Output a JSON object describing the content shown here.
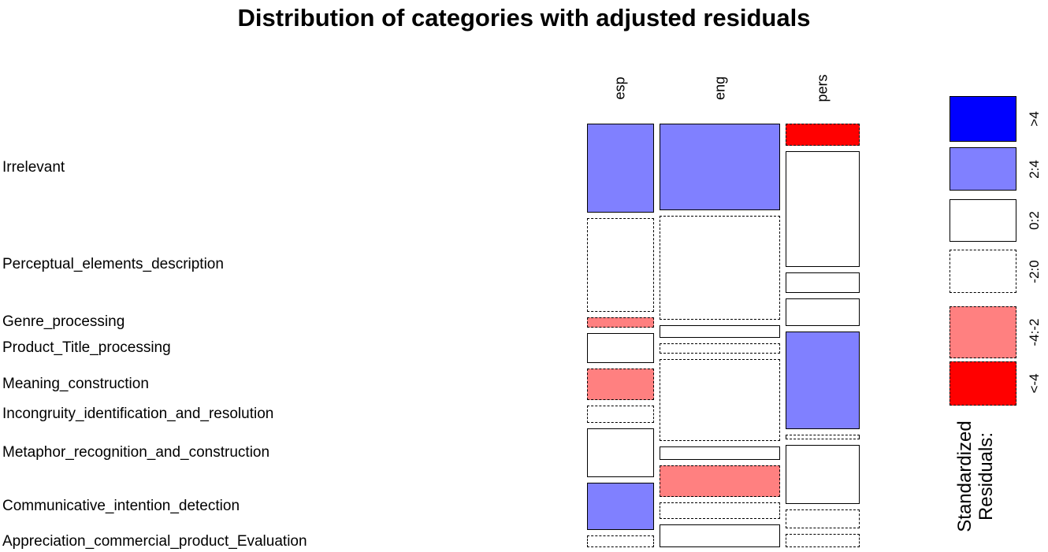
{
  "title": "Distribution of categories with adjusted residuals",
  "legend": {
    "title_lines": [
      "Standardized",
      "Residuals:"
    ],
    "bins": [
      {
        "label": ">4",
        "fill": "#0000FF",
        "border": "solid"
      },
      {
        "label": "2:4",
        "fill": "#8080FF",
        "border": "solid"
      },
      {
        "label": "0:2",
        "fill": "#FFFFFF",
        "border": "solid"
      },
      {
        "label": "-2:0",
        "fill": "#FFFFFF",
        "border": "dashed"
      },
      {
        "label": "-4:-2",
        "fill": "#FF8080",
        "border": "dashed"
      },
      {
        "label": "<-4",
        "fill": "#FF0000",
        "border": "dashed"
      }
    ]
  },
  "chart_data": {
    "type": "mosaic",
    "title": "Distribution of categories with adjusted residuals",
    "legend_position": "right",
    "columns": [
      "esp",
      "eng",
      "pers"
    ],
    "column_shares": [
      0.256,
      0.461,
      0.283
    ],
    "rows": [
      "Irrelevant",
      "Perceptual_elements_description",
      "Genre_processing",
      "Product_Title_processing",
      "Meaning_construction",
      "Incongruity_identification_and_resolution",
      "Metaphor_recognition_and_construction",
      "Communicative_intention_detection",
      "Appreciation_commercial_product_Evaluation"
    ],
    "residual_bins": [
      ">4",
      "2:4",
      "0:2",
      "-2:0",
      "-4:-2",
      "<-4"
    ],
    "cells": [
      {
        "column": "esp",
        "cells": [
          {
            "row": "Irrelevant",
            "share": 0.234,
            "residual_bin": "2:4"
          },
          {
            "row": "Perceptual_elements_description",
            "share": 0.247,
            "residual_bin": "-2:0"
          },
          {
            "row": "Genre_processing",
            "share": 0.027,
            "residual_bin": "-4:-2"
          },
          {
            "row": "Product_Title_processing",
            "share": 0.079,
            "residual_bin": "0:2"
          },
          {
            "row": "Meaning_construction",
            "share": 0.083,
            "residual_bin": "-4:-2"
          },
          {
            "row": "Incongruity_identification_and_resolution",
            "share": 0.046,
            "residual_bin": "-2:0"
          },
          {
            "row": "Metaphor_recognition_and_construction",
            "share": 0.129,
            "residual_bin": "0:2"
          },
          {
            "row": "Communicative_intention_detection",
            "share": 0.124,
            "residual_bin": "2:4"
          },
          {
            "row": "Appreciation_commercial_product_Evaluation",
            "share": 0.031,
            "residual_bin": "-2:0"
          }
        ]
      },
      {
        "column": "eng",
        "cells": [
          {
            "row": "Irrelevant",
            "share": 0.228,
            "residual_bin": "2:4"
          },
          {
            "row": "Perceptual_elements_description",
            "share": 0.274,
            "residual_bin": "-2:0"
          },
          {
            "row": "Genre_processing",
            "share": 0.033,
            "residual_bin": "0:2"
          },
          {
            "row": "Product_Title_processing",
            "share": 0.027,
            "residual_bin": "-2:0"
          },
          {
            "row": "Meaning_construction",
            "share": 0.216,
            "residual_bin": "-2:0"
          },
          {
            "row": "Incongruity_identification_and_resolution",
            "share": 0.035,
            "residual_bin": "0:2"
          },
          {
            "row": "Metaphor_recognition_and_construction",
            "share": 0.083,
            "residual_bin": "-4:-2"
          },
          {
            "row": "Communicative_intention_detection",
            "share": 0.044,
            "residual_bin": "-2:0"
          },
          {
            "row": "Appreciation_commercial_product_Evaluation",
            "share": 0.06,
            "residual_bin": "0:2"
          }
        ]
      },
      {
        "column": "pers",
        "cells": [
          {
            "row": "Irrelevant",
            "share": 0.058,
            "residual_bin": "<-4"
          },
          {
            "row": "Perceptual_elements_description",
            "share": 0.305,
            "residual_bin": "0:2"
          },
          {
            "row": "Genre_processing",
            "share": 0.054,
            "residual_bin": "0:2"
          },
          {
            "row": "Product_Title_processing",
            "share": 0.073,
            "residual_bin": "0:2"
          },
          {
            "row": "Meaning_construction",
            "share": 0.257,
            "residual_bin": "2:4"
          },
          {
            "row": "Incongruity_identification_and_resolution",
            "share": 0.012,
            "residual_bin": "-2:0"
          },
          {
            "row": "Metaphor_recognition_and_construction",
            "share": 0.156,
            "residual_bin": "0:2"
          },
          {
            "row": "Communicative_intention_detection",
            "share": 0.05,
            "residual_bin": "-2:0"
          },
          {
            "row": "Appreciation_commercial_product_Evaluation",
            "share": 0.035,
            "residual_bin": "-2:0"
          }
        ]
      }
    ]
  }
}
